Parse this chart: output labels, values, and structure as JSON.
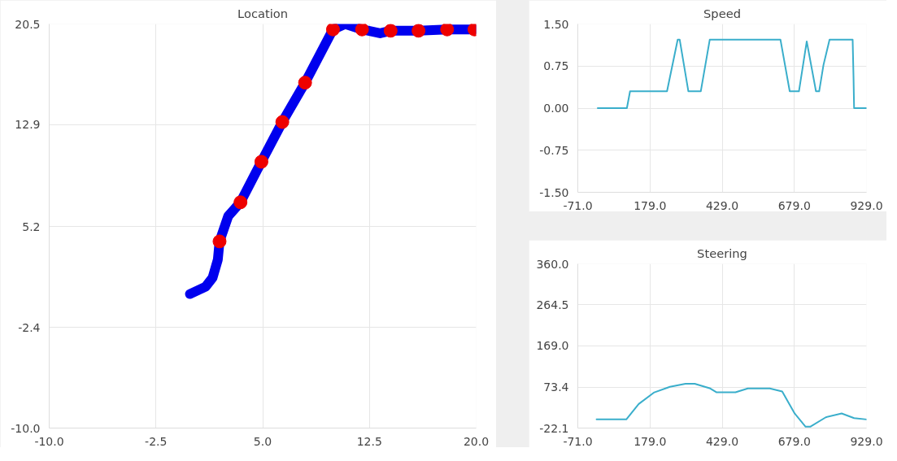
{
  "chart_data": [
    {
      "type": "line",
      "title": "Location",
      "xlim": [
        -10,
        20
      ],
      "ylim": [
        -10,
        20.5
      ],
      "grid": true,
      "xticks": [
        {
          "value": -10,
          "label": "-10.0"
        },
        -2.5,
        {
          "value": 5,
          "label": "5.0"
        },
        12.5,
        {
          "value": 20,
          "label": "20.0"
        }
      ],
      "yticks": [
        {
          "value": -10,
          "label": "-10.0"
        },
        -2.4,
        5.2,
        12.9,
        20.5
      ],
      "series": [
        {
          "type": "line",
          "color": "#0000ee",
          "x": [
            -0.11,
            0.99,
            1.48,
            1.85,
            1.97,
            2.58,
            3.44,
            4.91,
            6.38,
            7.98,
            9.94,
            10.8,
            11.98,
            13.25,
            13.99,
            15.95,
            17.96,
            19.88
          ],
          "values": [
            0.12,
            0.67,
            1.35,
            2.72,
            4.09,
            6.0,
            7.04,
            10.1,
            13.1,
            16.07,
            20.09,
            20.5,
            20.09,
            19.8,
            19.99,
            19.99,
            20.09,
            20.09
          ]
        },
        {
          "type": "scatter",
          "color": "#ee0000",
          "x": [
            1.97,
            3.44,
            4.91,
            6.38,
            7.98,
            9.94,
            11.98,
            13.99,
            15.95,
            17.96,
            19.88
          ],
          "values": [
            4.09,
            7.04,
            10.1,
            13.1,
            16.07,
            20.09,
            20.09,
            19.99,
            19.99,
            20.09,
            20.09
          ]
        }
      ]
    },
    {
      "type": "line",
      "title": "Speed",
      "xlim": [
        -71,
        929
      ],
      "ylim": [
        -1.5,
        1.5
      ],
      "grid": true,
      "xticks": [
        {
          "value": -71,
          "label": "-71.0"
        },
        {
          "value": 179,
          "label": "179.0"
        },
        {
          "value": 429,
          "label": "429.0"
        },
        {
          "value": 679,
          "label": "679.0"
        },
        {
          "value": 929,
          "label": "929.0"
        }
      ],
      "yticks": [
        {
          "value": -1.5,
          "label": "-1.50"
        },
        -0.75,
        {
          "value": 0,
          "label": "0.00"
        },
        0.75,
        {
          "value": 1.5,
          "label": "1.50"
        }
      ],
      "series": [
        {
          "color": "#3aaecb",
          "x": [
            -2,
            99,
            110,
            238,
            275,
            282,
            312,
            355,
            386,
            631,
            663,
            695,
            722,
            754,
            765,
            780,
            801,
            881,
            884,
            886,
            929
          ],
          "values": [
            0,
            0,
            0.3,
            0.3,
            1.22,
            1.22,
            0.3,
            0.3,
            1.22,
            1.22,
            0.3,
            0.3,
            1.19,
            0.3,
            0.3,
            0.77,
            1.22,
            1.22,
            0.56,
            0,
            0
          ]
        }
      ]
    },
    {
      "type": "line",
      "title": "Steering",
      "xlim": [
        -71,
        929
      ],
      "ylim": [
        -22.1,
        360
      ],
      "grid": true,
      "xticks": [
        {
          "value": -71,
          "label": "-71.0"
        },
        {
          "value": 179,
          "label": "179.0"
        },
        {
          "value": 429,
          "label": "429.0"
        },
        {
          "value": 679,
          "label": "679.0"
        },
        {
          "value": 929,
          "label": "929.0"
        }
      ],
      "yticks": [
        -22.1,
        73.4,
        {
          "value": 169,
          "label": "169.0"
        },
        264.5,
        {
          "value": 360,
          "label": "360.0"
        }
      ],
      "series": [
        {
          "color": "#3aaecb",
          "x": [
            -6,
            97,
            140,
            194,
            248,
            302,
            334,
            388,
            410,
            475,
            518,
            594,
            637,
            680,
            718,
            734,
            788,
            843,
            886,
            929
          ],
          "values": [
            -2,
            -2,
            34,
            61,
            74,
            81,
            81,
            70,
            61,
            61,
            70,
            70,
            63,
            12,
            -19,
            -19,
            3,
            12,
            1,
            -2
          ]
        }
      ]
    }
  ]
}
